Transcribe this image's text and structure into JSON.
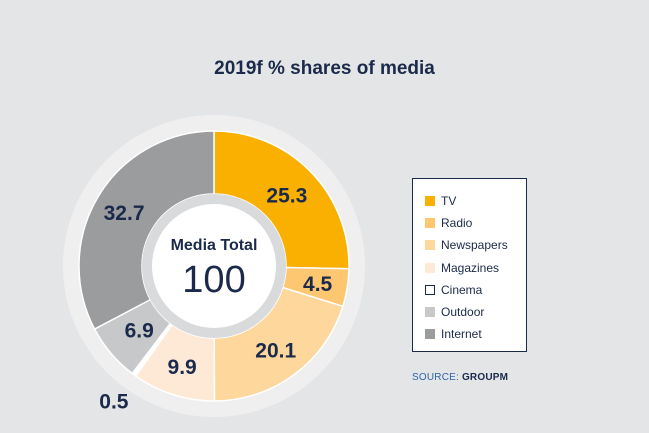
{
  "chart_data": {
    "type": "pie",
    "title": "2019f % shares of media",
    "center_label": "Media Total",
    "center_value": "100",
    "categories": [
      "TV",
      "Radio",
      "Newspapers",
      "Magazines",
      "Cinema",
      "Outdoor",
      "Internet"
    ],
    "values": [
      25.3,
      4.5,
      20.1,
      9.9,
      0.5,
      6.9,
      32.7
    ],
    "value_labels": [
      "25.3",
      "4.5",
      "20.1",
      "9.9",
      "0.5",
      "6.9",
      "32.7"
    ],
    "colors": [
      "#f9b000",
      "#fcc770",
      "#fdd79c",
      "#fde9d6",
      "#ffffff",
      "#c7c8ca",
      "#9b9c9e"
    ],
    "legend": "right",
    "source_label": "SOURCE:",
    "source_value": "GROUPM"
  }
}
